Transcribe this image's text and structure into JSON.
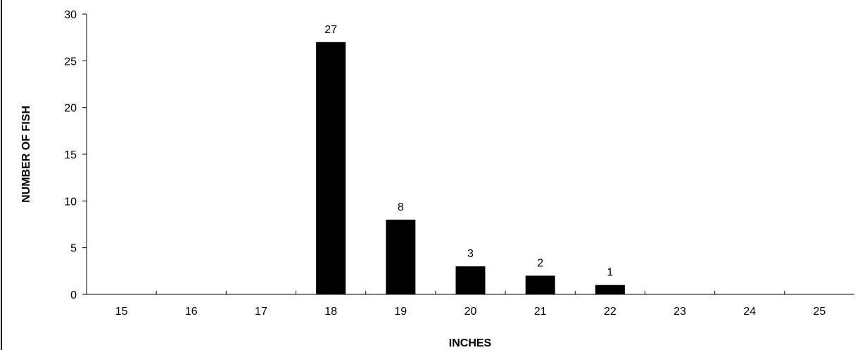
{
  "chart_data": {
    "type": "bar",
    "categories": [
      "15",
      "16",
      "17",
      "18",
      "19",
      "20",
      "21",
      "22",
      "23",
      "24",
      "25"
    ],
    "values": [
      0,
      0,
      0,
      27,
      8,
      3,
      2,
      1,
      0,
      0,
      0
    ],
    "data_labels": [
      "",
      "",
      "",
      "27",
      "8",
      "3",
      "2",
      "1",
      "",
      "",
      ""
    ],
    "title": "",
    "xlabel": "INCHES",
    "ylabel": "NUMBER OF FISH",
    "ylim": [
      0,
      30
    ],
    "yticks": [
      0,
      5,
      10,
      15,
      20,
      25,
      30
    ],
    "grid": false,
    "legend": "none",
    "bar_color": "#000000"
  }
}
